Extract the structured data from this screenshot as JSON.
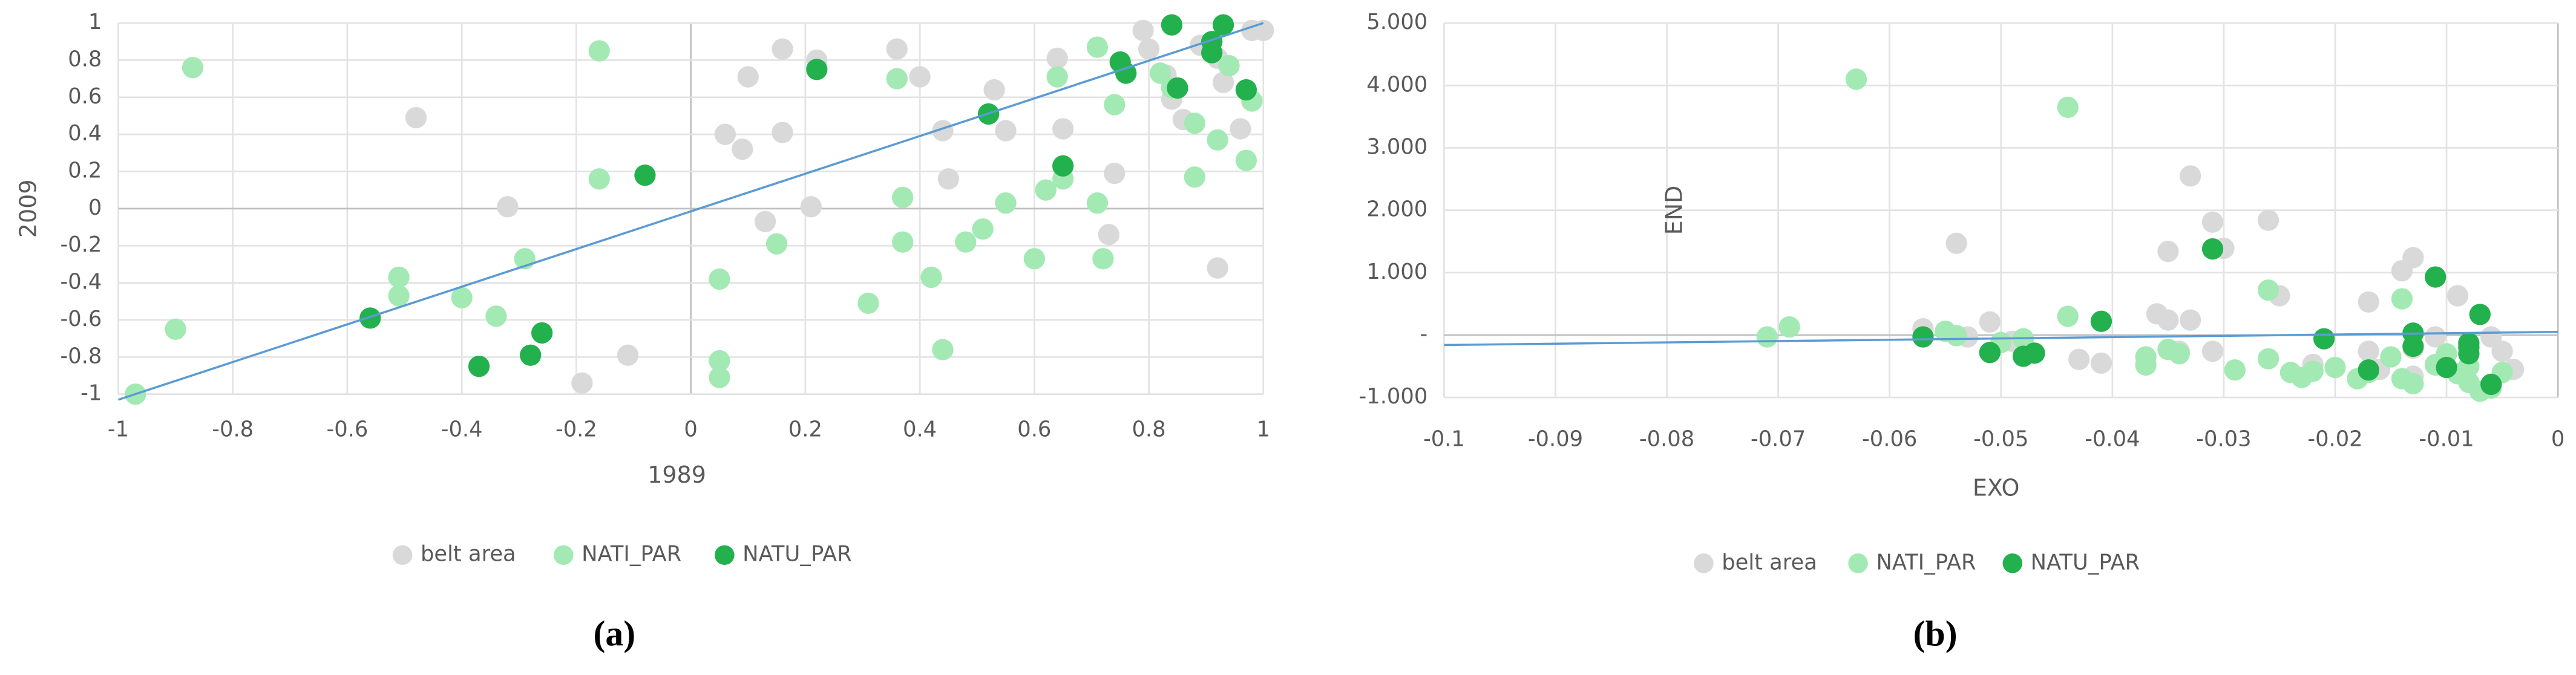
{
  "chart_data": [
    {
      "type": "scatter",
      "caption": "(a)",
      "x_label": "1989",
      "y_label": "2009",
      "xlim": [
        -1,
        1
      ],
      "ylim": [
        -1,
        1
      ],
      "xticks": [
        -1,
        -0.8,
        -0.6,
        -0.4,
        -0.2,
        0,
        0.2,
        0.4,
        0.6,
        0.8,
        1
      ],
      "yticks": [
        -1,
        -0.8,
        -0.6,
        -0.4,
        -0.2,
        0,
        0.2,
        0.4,
        0.6,
        0.8,
        1
      ],
      "grid": true,
      "legend": "bottom",
      "trendline": {
        "color": "#5b9bd5",
        "x": [
          -1,
          1
        ],
        "y": [
          -1.03,
          1.0
        ]
      },
      "series": [
        {
          "name": "belt area",
          "color": "#d9d9d9",
          "x": [
            -0.48,
            -0.32,
            -0.11,
            -0.19,
            0.06,
            0.09,
            0.1,
            0.16,
            0.16,
            0.13,
            0.22,
            0.21,
            0.36,
            0.4,
            0.44,
            0.45,
            0.53,
            0.55,
            0.64,
            0.65,
            0.74,
            0.73,
            0.79,
            0.83,
            0.84,
            0.86,
            0.92,
            0.93,
            0.96,
            0.92,
            0.98,
            1.0,
            0.8,
            0.89
          ],
          "values": [
            0.49,
            0.01,
            -0.79,
            -0.94,
            0.4,
            0.32,
            0.71,
            0.86,
            0.41,
            -0.07,
            0.8,
            0.01,
            0.86,
            0.71,
            0.42,
            0.16,
            0.64,
            0.42,
            0.81,
            0.43,
            0.19,
            -0.14,
            0.96,
            0.72,
            0.59,
            0.48,
            0.81,
            0.68,
            0.43,
            -0.32,
            0.96,
            0.96,
            0.86,
            0.88
          ]
        },
        {
          "name": "NATI_PAR",
          "color": "#a3e9b3",
          "x": [
            -0.87,
            -0.16,
            -0.16,
            -0.9,
            -0.97,
            -0.51,
            -0.51,
            -0.4,
            -0.34,
            -0.29,
            0.05,
            0.05,
            0.05,
            0.15,
            0.31,
            0.36,
            0.37,
            0.37,
            0.42,
            0.44,
            0.48,
            0.51,
            0.55,
            0.6,
            0.62,
            0.64,
            0.65,
            0.71,
            0.72,
            0.71,
            0.74,
            0.82,
            0.84,
            0.88,
            0.88,
            0.92,
            0.94,
            0.97,
            0.98
          ],
          "values": [
            0.76,
            0.85,
            0.16,
            -0.65,
            -1.0,
            -0.37,
            -0.47,
            -0.48,
            -0.58,
            -0.27,
            -0.38,
            -0.82,
            -0.91,
            -0.19,
            -0.51,
            0.7,
            0.06,
            -0.18,
            -0.37,
            -0.76,
            -0.18,
            -0.11,
            0.03,
            -0.27,
            0.1,
            0.71,
            0.16,
            0.03,
            -0.27,
            0.87,
            0.56,
            0.73,
            0.65,
            0.46,
            0.17,
            0.37,
            0.77,
            0.26,
            0.58
          ]
        },
        {
          "name": "NATU_PAR",
          "color": "#22b14c",
          "x": [
            -0.56,
            -0.37,
            -0.28,
            -0.26,
            -0.08,
            0.22,
            0.52,
            0.65,
            0.75,
            0.76,
            0.84,
            0.85,
            0.91,
            0.91,
            0.93,
            0.97
          ],
          "values": [
            -0.59,
            -0.85,
            -0.79,
            -0.67,
            0.18,
            0.75,
            0.51,
            0.23,
            0.79,
            0.73,
            0.99,
            0.65,
            0.84,
            0.9,
            0.99,
            0.64
          ]
        }
      ]
    },
    {
      "type": "scatter",
      "caption": "(b)",
      "x_label": "EXO",
      "y_label": "END",
      "xlim": [
        -0.1,
        0
      ],
      "ylim": [
        -1000,
        5000
      ],
      "xticks": [
        -0.1,
        -0.09,
        -0.08,
        -0.07,
        -0.06,
        -0.05,
        -0.04,
        -0.03,
        -0.02,
        -0.01,
        0
      ],
      "yticks": [
        {
          "value": -1000,
          "label": "-1.000"
        },
        {
          "value": 0,
          "label": "-"
        },
        {
          "value": 1000,
          "label": "1.000"
        },
        {
          "value": 2000,
          "label": "2.000"
        },
        {
          "value": 3000,
          "label": "3.000"
        },
        {
          "value": 4000,
          "label": "4.000"
        },
        {
          "value": 5000,
          "label": "5.000"
        }
      ],
      "grid": true,
      "legend": "bottom",
      "trendline": {
        "color": "#5b9bd5",
        "x": [
          -0.1,
          0
        ],
        "y": [
          -160,
          50
        ]
      },
      "series": [
        {
          "name": "belt area",
          "color": "#d9d9d9",
          "x": [
            -0.054,
            -0.057,
            -0.053,
            -0.051,
            -0.049,
            -0.043,
            -0.041,
            -0.036,
            -0.035,
            -0.035,
            -0.034,
            -0.033,
            -0.033,
            -0.031,
            -0.031,
            -0.03,
            -0.026,
            -0.025,
            -0.022,
            -0.017,
            -0.017,
            -0.016,
            -0.014,
            -0.013,
            -0.013,
            -0.011,
            -0.011,
            -0.009,
            -0.008,
            -0.006,
            -0.005,
            -0.004,
            -0.013
          ],
          "values": [
            1470,
            100,
            -30,
            210,
            -100,
            -390,
            -450,
            340,
            240,
            1340,
            -260,
            240,
            2550,
            -260,
            1810,
            1390,
            1840,
            630,
            -470,
            -260,
            530,
            -550,
            1030,
            1240,
            -210,
            -470,
            -30,
            630,
            -180,
            -30,
            -260,
            -550,
            -660
          ]
        },
        {
          "name": "NATI_PAR",
          "color": "#a3e9b3",
          "x": [
            -0.071,
            -0.069,
            -0.063,
            -0.055,
            -0.054,
            -0.05,
            -0.048,
            -0.044,
            -0.044,
            -0.037,
            -0.037,
            -0.035,
            -0.034,
            -0.029,
            -0.026,
            -0.026,
            -0.024,
            -0.023,
            -0.022,
            -0.02,
            -0.018,
            -0.017,
            -0.015,
            -0.014,
            -0.014,
            -0.013,
            -0.01,
            -0.009,
            -0.008,
            -0.007,
            -0.006,
            -0.005,
            -0.011,
            -0.008
          ],
          "values": [
            -30,
            130,
            4100,
            60,
            -10,
            -120,
            -60,
            3650,
            300,
            -350,
            -480,
            -230,
            -300,
            -560,
            720,
            -380,
            -600,
            -680,
            -580,
            -520,
            -700,
            -600,
            -350,
            580,
            -700,
            -780,
            -300,
            -620,
            -760,
            -900,
            -850,
            -600,
            -480,
            -500
          ]
        },
        {
          "name": "NATU_PAR",
          "color": "#22b14c",
          "x": [
            -0.057,
            -0.051,
            -0.048,
            -0.047,
            -0.041,
            -0.031,
            -0.021,
            -0.017,
            -0.013,
            -0.013,
            -0.011,
            -0.01,
            -0.008,
            -0.008,
            -0.008,
            -0.007,
            -0.006
          ],
          "values": [
            -30,
            -280,
            -340,
            -290,
            220,
            1380,
            -60,
            -560,
            -180,
            30,
            930,
            -520,
            -200,
            -300,
            -130,
            330,
            -790
          ]
        }
      ]
    }
  ]
}
